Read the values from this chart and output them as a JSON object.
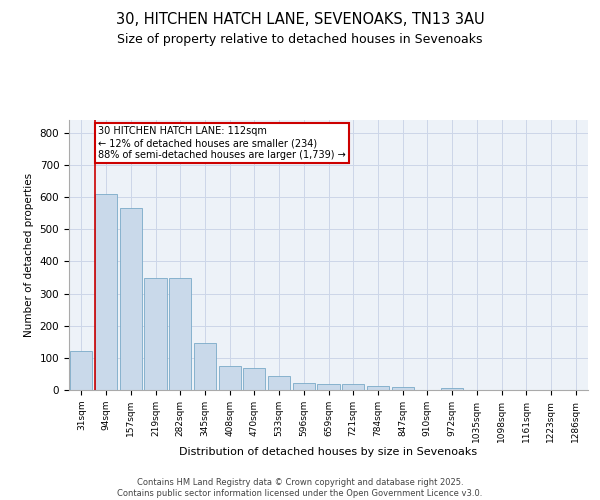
{
  "title1": "30, HITCHEN HATCH LANE, SEVENOAKS, TN13 3AU",
  "title2": "Size of property relative to detached houses in Sevenoaks",
  "xlabel": "Distribution of detached houses by size in Sevenoaks",
  "ylabel": "Number of detached properties",
  "categories": [
    "31sqm",
    "94sqm",
    "157sqm",
    "219sqm",
    "282sqm",
    "345sqm",
    "408sqm",
    "470sqm",
    "533sqm",
    "596sqm",
    "659sqm",
    "721sqm",
    "784sqm",
    "847sqm",
    "910sqm",
    "972sqm",
    "1035sqm",
    "1098sqm",
    "1161sqm",
    "1223sqm",
    "1286sqm"
  ],
  "values": [
    120,
    610,
    565,
    350,
    350,
    145,
    75,
    68,
    45,
    22,
    20,
    20,
    13,
    8,
    0,
    5,
    0,
    0,
    0,
    0,
    0
  ],
  "bar_color": "#c9d9ea",
  "bar_edge_color": "#7aaac8",
  "vline_color": "#cc0000",
  "annotation_text": "30 HITCHEN HATCH LANE: 112sqm\n← 12% of detached houses are smaller (234)\n88% of semi-detached houses are larger (1,739) →",
  "annotation_box_color": "#cc0000",
  "grid_color": "#ccd6e8",
  "bg_color": "#edf2f8",
  "footer": "Contains HM Land Registry data © Crown copyright and database right 2025.\nContains public sector information licensed under the Open Government Licence v3.0.",
  "ylim": [
    0,
    840
  ],
  "title1_fontsize": 10.5,
  "title2_fontsize": 9
}
